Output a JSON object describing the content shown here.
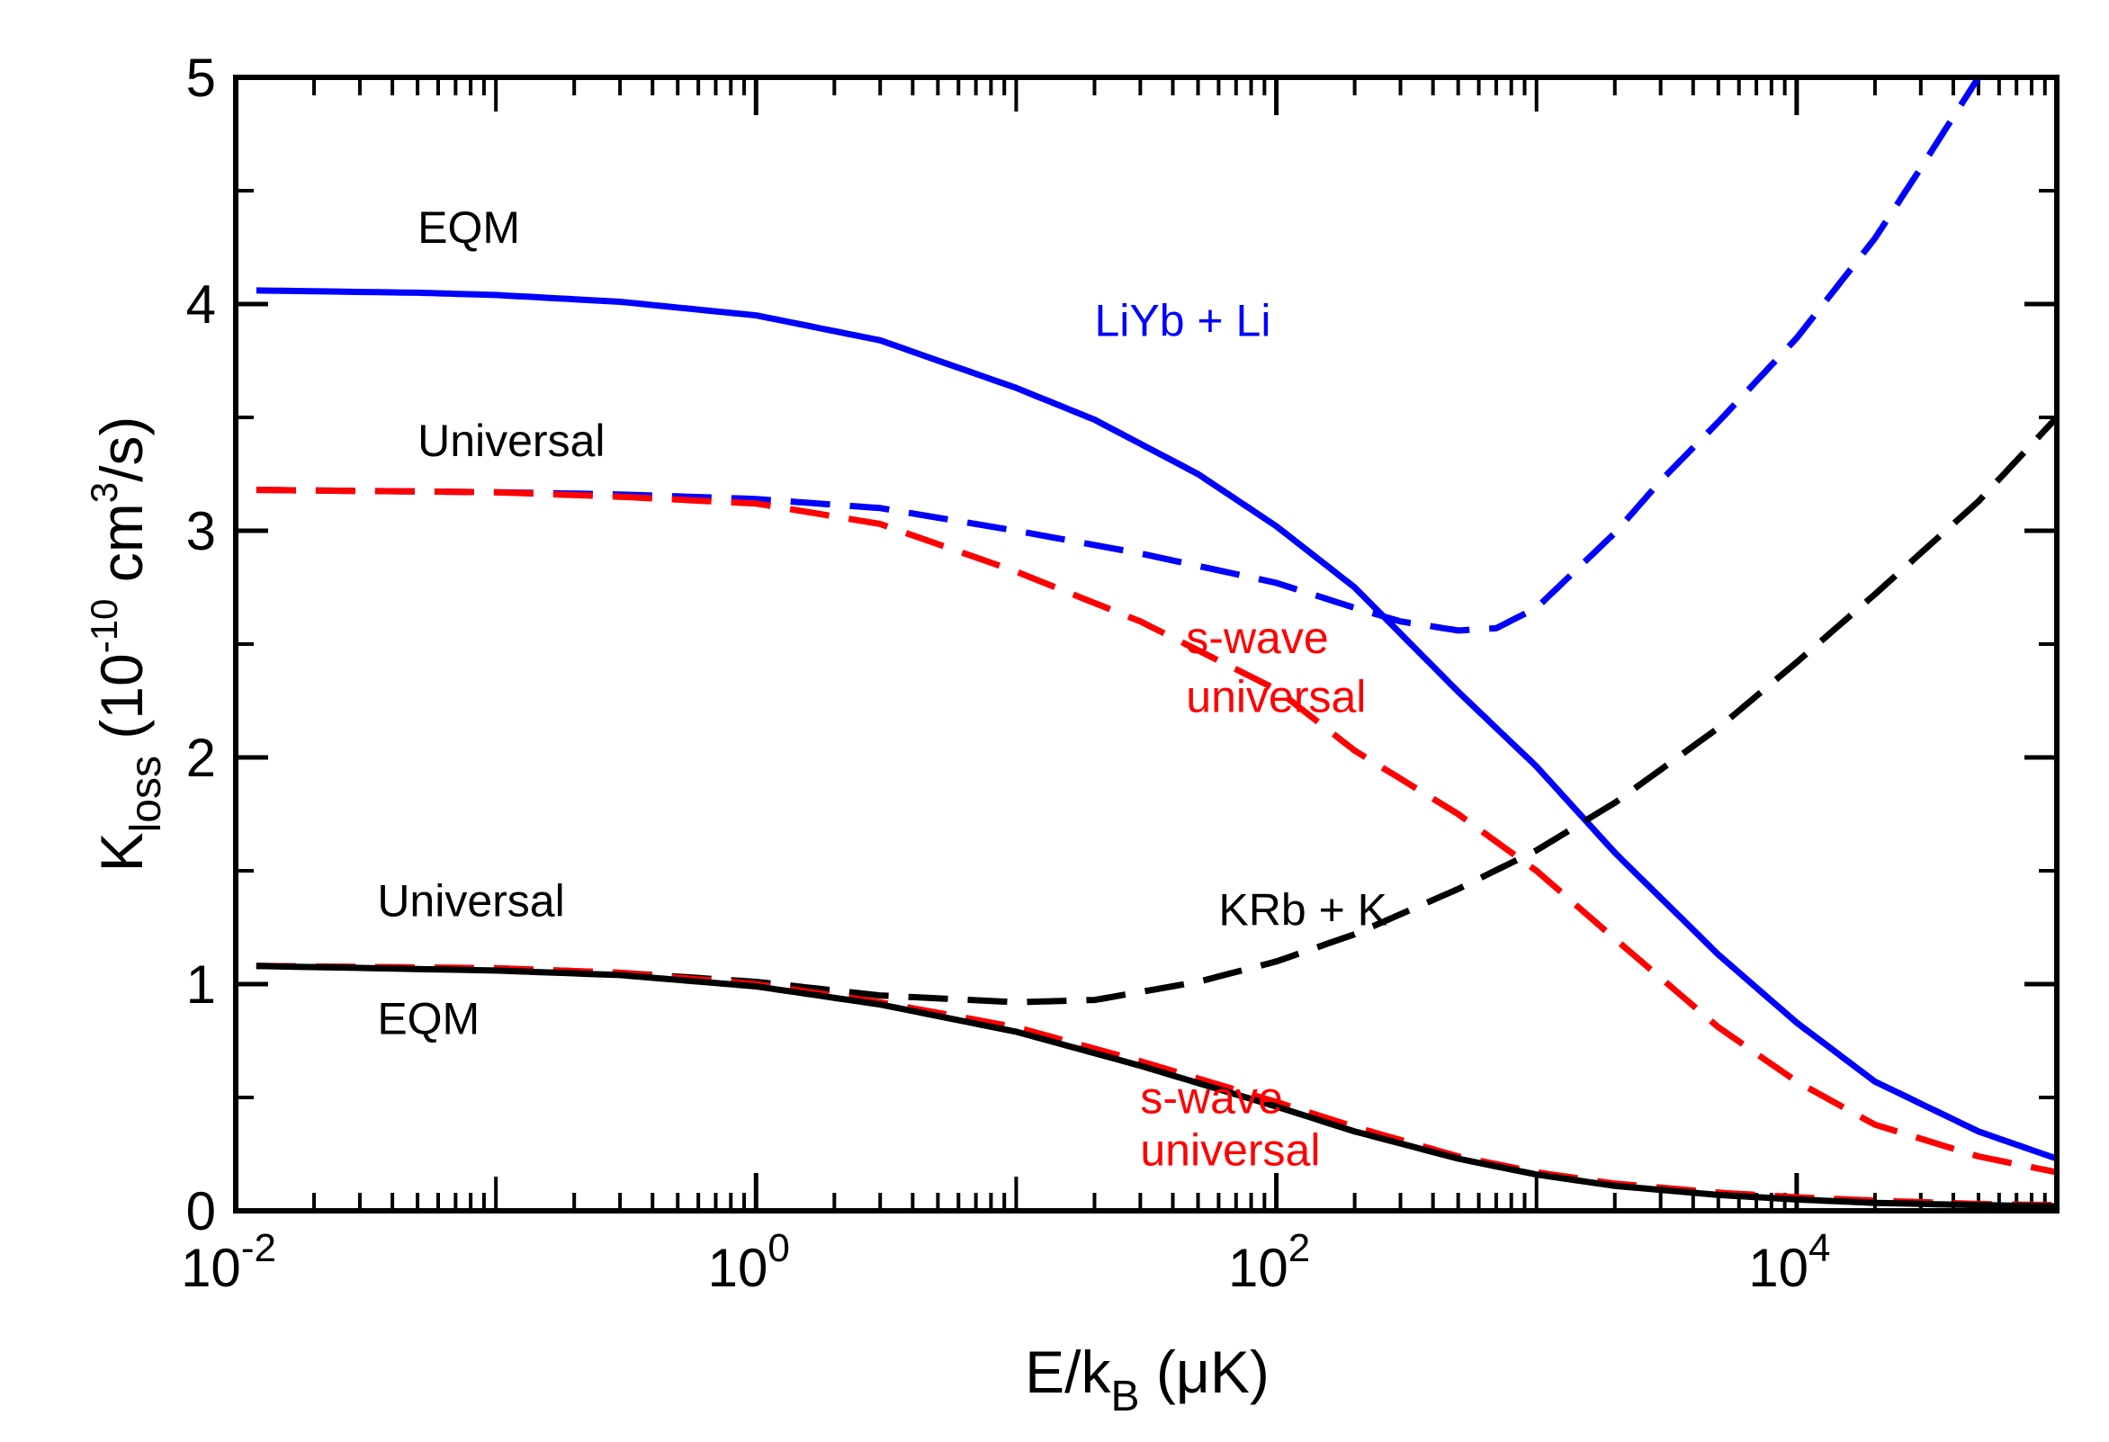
{
  "chart_data": {
    "type": "line",
    "xscale": "log",
    "xlim": [
      0.01,
      100000
    ],
    "ylim": [
      0,
      5
    ],
    "xlabel": {
      "main": "E/k",
      "sub": "B",
      "unit": " (μK)"
    },
    "ylabel": {
      "main": "K",
      "sub": "loss",
      "pre": " (10",
      "exp": "-10",
      "mid": " cm",
      "exp2": "3",
      "post": "/s)"
    },
    "xticks": [
      {
        "base": "10",
        "exp": "-2",
        "value": 0.01
      },
      {
        "base": "10",
        "exp": "0",
        "value": 1
      },
      {
        "base": "10",
        "exp": "2",
        "value": 100
      },
      {
        "base": "10",
        "exp": "4",
        "value": 10000
      }
    ],
    "yticks": [
      {
        "label": "0",
        "value": 0
      },
      {
        "label": "1",
        "value": 1
      },
      {
        "label": "2",
        "value": 2
      },
      {
        "label": "3",
        "value": 3
      },
      {
        "label": "4",
        "value": 4
      },
      {
        "label": "5",
        "value": 5
      }
    ],
    "colors": {
      "blue": "#0000ff",
      "red": "#ff0000",
      "black": "#000000"
    },
    "series": [
      {
        "color": "#0000ff",
        "dash": "solid",
        "x": [
          0.012,
          0.05,
          0.1,
          0.3,
          1,
          3,
          10,
          20,
          50,
          100,
          200,
          500,
          1000,
          2000,
          5000,
          10000,
          20000,
          50000,
          100000
        ],
        "y": [
          4.06,
          4.05,
          4.04,
          4.01,
          3.95,
          3.84,
          3.63,
          3.49,
          3.25,
          3.02,
          2.75,
          2.29,
          1.96,
          1.58,
          1.13,
          0.83,
          0.57,
          0.35,
          0.23
        ]
      },
      {
        "color": "#0000ff",
        "dash": "dashed",
        "x": [
          0.012,
          0.1,
          0.3,
          1,
          3,
          10,
          30,
          100,
          200,
          300,
          500,
          700,
          1000,
          2000,
          3000,
          5000,
          10000,
          20000,
          30000,
          50000
        ],
        "y": [
          3.18,
          3.17,
          3.16,
          3.14,
          3.1,
          3.0,
          2.9,
          2.77,
          2.66,
          2.6,
          2.56,
          2.57,
          2.66,
          2.99,
          3.22,
          3.48,
          3.85,
          4.29,
          4.6,
          5.0
        ]
      },
      {
        "color": "#ff0000",
        "dash": "dashed",
        "x": [
          0.012,
          0.1,
          0.3,
          1,
          3,
          10,
          30,
          100,
          200,
          500,
          1000,
          2000,
          5000,
          10000,
          20000,
          50000,
          100000
        ],
        "y": [
          3.18,
          3.17,
          3.15,
          3.12,
          3.03,
          2.82,
          2.6,
          2.3,
          2.03,
          1.75,
          1.5,
          1.2,
          0.81,
          0.57,
          0.38,
          0.24,
          0.17
        ]
      },
      {
        "color": "#000000",
        "dash": "dashed",
        "x": [
          0.012,
          0.1,
          0.3,
          1,
          3,
          10,
          20,
          50,
          100,
          200,
          500,
          1000,
          2000,
          5000,
          10000,
          20000,
          50000,
          100000
        ],
        "y": [
          1.08,
          1.07,
          1.05,
          1.01,
          0.95,
          0.92,
          0.93,
          1.01,
          1.1,
          1.22,
          1.42,
          1.59,
          1.8,
          2.13,
          2.42,
          2.72,
          3.13,
          3.5
        ]
      },
      {
        "color": "#ff0000",
        "dash": "dashed",
        "x": [
          0.012,
          0.1,
          0.3,
          1,
          3,
          10,
          30,
          100,
          200,
          500,
          1000,
          2000,
          5000,
          10000,
          20000,
          50000,
          100000
        ],
        "y": [
          1.08,
          1.07,
          1.05,
          1.0,
          0.92,
          0.81,
          0.66,
          0.48,
          0.37,
          0.24,
          0.17,
          0.12,
          0.08,
          0.06,
          0.045,
          0.03,
          0.025
        ]
      },
      {
        "color": "#000000",
        "dash": "solid",
        "x": [
          0.012,
          0.1,
          0.3,
          1,
          3,
          10,
          30,
          100,
          200,
          500,
          1000,
          2000,
          5000,
          10000,
          20000,
          50000,
          100000
        ],
        "y": [
          1.08,
          1.06,
          1.04,
          0.99,
          0.91,
          0.79,
          0.64,
          0.46,
          0.35,
          0.23,
          0.16,
          0.11,
          0.07,
          0.05,
          0.035,
          0.025,
          0.02
        ]
      }
    ],
    "annotations": [
      {
        "text": "EQM",
        "color": "#000000",
        "x": 0.05,
        "y": 4.27
      },
      {
        "text": "LiYb + Li",
        "color": "#0000ff",
        "x": 20,
        "y": 3.86,
        "size": "large"
      },
      {
        "text": "Universal",
        "color": "#000000",
        "x": 0.05,
        "y": 3.33
      },
      {
        "text": "s-wave",
        "color": "#ff0000",
        "x": 45,
        "y": 2.46
      },
      {
        "text": "universal",
        "color": "#ff0000",
        "x": 45,
        "y": 2.2
      },
      {
        "text": "Universal",
        "color": "#000000",
        "x": 0.035,
        "y": 1.3
      },
      {
        "text": "KRb + K",
        "color": "#000000",
        "x": 60,
        "y": 1.26,
        "size": "large"
      },
      {
        "text": "EQM",
        "color": "#000000",
        "x": 0.035,
        "y": 0.78
      },
      {
        "text": "s-wave",
        "color": "#ff0000",
        "x": 30,
        "y": 0.43
      },
      {
        "text": "universal",
        "color": "#ff0000",
        "x": 30,
        "y": 0.2
      }
    ]
  }
}
